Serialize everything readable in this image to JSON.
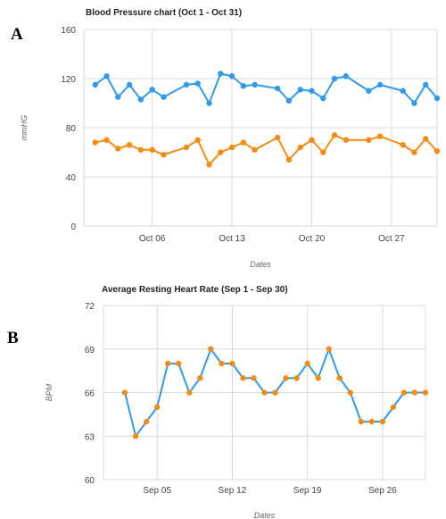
{
  "panels": {
    "a": "A",
    "b": "B"
  },
  "chart_data": [
    {
      "type": "line",
      "title": "Blood Pressure chart (Oct 1 - Oct 31)",
      "xlabel": "Dates",
      "ylabel": "mmHG",
      "ylim": [
        0,
        160
      ],
      "yticks": [
        0,
        40,
        80,
        120,
        160
      ],
      "xlim": [
        "2023-09-30",
        "2023-10-31"
      ],
      "xticks": [
        {
          "label": "Oct 06",
          "date": "2023-10-06"
        },
        {
          "label": "Oct 13",
          "date": "2023-10-13"
        },
        {
          "label": "Oct 20",
          "date": "2023-10-20"
        },
        {
          "label": "Oct 27",
          "date": "2023-10-27"
        }
      ],
      "grid": true,
      "x": [
        "2023-10-01",
        "2023-10-02",
        "2023-10-03",
        "2023-10-04",
        "2023-10-05",
        "2023-10-06",
        "2023-10-07",
        "2023-10-09",
        "2023-10-10",
        "2023-10-11",
        "2023-10-12",
        "2023-10-13",
        "2023-10-14",
        "2023-10-15",
        "2023-10-17",
        "2023-10-18",
        "2023-10-19",
        "2023-10-20",
        "2023-10-21",
        "2023-10-22",
        "2023-10-23",
        "2023-10-25",
        "2023-10-26",
        "2023-10-28",
        "2023-10-29",
        "2023-10-30",
        "2023-10-31"
      ],
      "series": [
        {
          "color": "#2f9bea",
          "values": [
            115,
            122,
            105,
            115,
            103,
            111,
            105,
            115,
            116,
            100,
            124,
            122,
            114,
            115,
            112,
            102,
            111,
            110,
            104,
            120,
            122,
            110,
            115,
            110,
            100,
            115,
            104
          ]
        },
        {
          "color": "#f28c12",
          "values": [
            68,
            70,
            63,
            66,
            62,
            62,
            58,
            64,
            70,
            50,
            60,
            64,
            68,
            62,
            72,
            54,
            64,
            70,
            60,
            74,
            70,
            70,
            73,
            66,
            60,
            71,
            61
          ]
        }
      ]
    },
    {
      "type": "line",
      "title": "Average Resting Heart Rate (Sep 1 - Sep 30)",
      "xlabel": "Dates",
      "ylabel": "BPM",
      "ylim": [
        60,
        72
      ],
      "yticks": [
        60,
        63,
        66,
        69,
        72
      ],
      "xlim": [
        "2023-08-31",
        "2023-09-30"
      ],
      "xticks": [
        {
          "label": "Sep 05",
          "date": "2023-09-05"
        },
        {
          "label": "Sep 12",
          "date": "2023-09-12"
        },
        {
          "label": "Sep 19",
          "date": "2023-09-19"
        },
        {
          "label": "Sep 26",
          "date": "2023-09-26"
        }
      ],
      "grid": true,
      "x": [
        "2023-09-02",
        "2023-09-03",
        "2023-09-04",
        "2023-09-05",
        "2023-09-06",
        "2023-09-07",
        "2023-09-08",
        "2023-09-09",
        "2023-09-10",
        "2023-09-11",
        "2023-09-12",
        "2023-09-13",
        "2023-09-14",
        "2023-09-15",
        "2023-09-16",
        "2023-09-17",
        "2023-09-18",
        "2023-09-19",
        "2023-09-20",
        "2023-09-21",
        "2023-09-22",
        "2023-09-23",
        "2023-09-24",
        "2023-09-25",
        "2023-09-26",
        "2023-09-27",
        "2023-09-28",
        "2023-09-29",
        "2023-09-30"
      ],
      "series": [
        {
          "color": "#2f9bea",
          "marker_color": "#f28c12",
          "values": [
            66,
            63,
            64,
            65,
            68,
            68,
            66,
            67,
            69,
            68,
            68,
            67,
            67,
            66,
            66,
            67,
            67,
            68,
            67,
            69,
            67,
            66,
            64,
            64,
            64,
            65,
            66,
            66,
            66
          ]
        }
      ],
      "extra_point": {
        "x": "2023-09-30",
        "y": 65
      }
    }
  ]
}
